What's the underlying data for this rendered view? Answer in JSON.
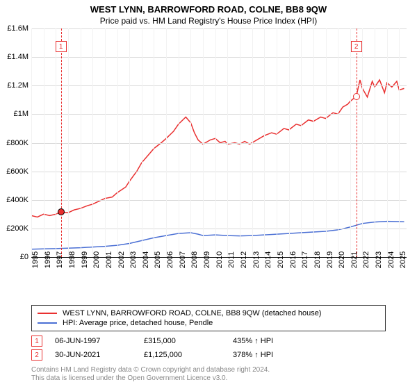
{
  "title": "WEST LYNN, BARROWFORD ROAD, COLNE, BB8 9QW",
  "subtitle": "Price paid vs. HM Land Registry's House Price Index (HPI)",
  "title_fontsize": 13,
  "subtitle_fontsize": 12,
  "axis_label_fontsize": 11,
  "legend_fontsize": 11,
  "footer_fontsize": 10,
  "chart": {
    "type": "line",
    "background_color": "#ffffff",
    "grid_color": "#d9d9d9",
    "grid_light": "#f2f2f2",
    "x_start": 1995,
    "x_end": 2025.6,
    "x_ticks": [
      1995,
      1996,
      1997,
      1998,
      1999,
      2000,
      2001,
      2002,
      2003,
      2004,
      2005,
      2006,
      2007,
      2008,
      2009,
      2010,
      2011,
      2012,
      2013,
      2014,
      2015,
      2016,
      2017,
      2018,
      2019,
      2020,
      2021,
      2022,
      2023,
      2024,
      2025
    ],
    "y_min": 0,
    "y_max": 1600000,
    "y_ticks": [
      {
        "v": 0,
        "label": "£0"
      },
      {
        "v": 200000,
        "label": "£200K"
      },
      {
        "v": 400000,
        "label": "£400K"
      },
      {
        "v": 600000,
        "label": "£600K"
      },
      {
        "v": 800000,
        "label": "£800K"
      },
      {
        "v": 1000000,
        "label": "£1M"
      },
      {
        "v": 1200000,
        "label": "£1.2M"
      },
      {
        "v": 1400000,
        "label": "£1.4M"
      },
      {
        "v": 1600000,
        "label": "£1.6M"
      }
    ],
    "markers": [
      {
        "n": "1",
        "year": 1997.42,
        "value": 315000,
        "color": "#e93030",
        "dot_fill": "#e93030",
        "dot_stroke": "#000"
      },
      {
        "n": "2",
        "year": 2021.5,
        "value": 1125000,
        "color": "#e93030",
        "dot_fill": "#ffffff",
        "dot_stroke": "#e93030"
      }
    ],
    "series": [
      {
        "name": "WEST LYNN, BARROWFORD ROAD, COLNE, BB8 9QW (detached house)",
        "color": "#e93030",
        "width": 1.5,
        "points": [
          [
            1995,
            290000
          ],
          [
            1995.5,
            280000
          ],
          [
            1996,
            300000
          ],
          [
            1996.5,
            290000
          ],
          [
            1997,
            300000
          ],
          [
            1997.42,
            315000
          ],
          [
            1998,
            310000
          ],
          [
            1998.5,
            330000
          ],
          [
            1999,
            340000
          ],
          [
            1999.6,
            360000
          ],
          [
            2000,
            370000
          ],
          [
            2000.5,
            390000
          ],
          [
            2001,
            410000
          ],
          [
            2001.6,
            420000
          ],
          [
            2002,
            450000
          ],
          [
            2002.7,
            490000
          ],
          [
            2003,
            530000
          ],
          [
            2003.6,
            600000
          ],
          [
            2004,
            660000
          ],
          [
            2004.6,
            720000
          ],
          [
            2005,
            760000
          ],
          [
            2005.6,
            800000
          ],
          [
            2006,
            830000
          ],
          [
            2006.6,
            880000
          ],
          [
            2007,
            930000
          ],
          [
            2007.6,
            980000
          ],
          [
            2008,
            940000
          ],
          [
            2008.3,
            870000
          ],
          [
            2008.6,
            820000
          ],
          [
            2009,
            790000
          ],
          [
            2009.6,
            820000
          ],
          [
            2010,
            830000
          ],
          [
            2010.4,
            800000
          ],
          [
            2010.8,
            810000
          ],
          [
            2011,
            790000
          ],
          [
            2011.6,
            800000
          ],
          [
            2012,
            790000
          ],
          [
            2012.4,
            810000
          ],
          [
            2012.8,
            790000
          ],
          [
            2013,
            800000
          ],
          [
            2013.6,
            830000
          ],
          [
            2014,
            850000
          ],
          [
            2014.6,
            870000
          ],
          [
            2015,
            860000
          ],
          [
            2015.6,
            900000
          ],
          [
            2016,
            890000
          ],
          [
            2016.6,
            930000
          ],
          [
            2017,
            920000
          ],
          [
            2017.6,
            960000
          ],
          [
            2018,
            950000
          ],
          [
            2018.6,
            980000
          ],
          [
            2019,
            970000
          ],
          [
            2019.6,
            1010000
          ],
          [
            2020,
            1000000
          ],
          [
            2020.4,
            1050000
          ],
          [
            2020.8,
            1070000
          ],
          [
            2021,
            1090000
          ],
          [
            2021.5,
            1125000
          ],
          [
            2021.8,
            1240000
          ],
          [
            2022,
            1180000
          ],
          [
            2022.4,
            1120000
          ],
          [
            2022.8,
            1230000
          ],
          [
            2023,
            1190000
          ],
          [
            2023.4,
            1240000
          ],
          [
            2023.8,
            1150000
          ],
          [
            2024,
            1220000
          ],
          [
            2024.4,
            1190000
          ],
          [
            2024.8,
            1230000
          ],
          [
            2025,
            1170000
          ],
          [
            2025.4,
            1180000
          ]
        ]
      },
      {
        "name": "HPI: Average price, detached house, Pendle",
        "color": "#4a6fd4",
        "width": 1.5,
        "points": [
          [
            1995,
            55000
          ],
          [
            1996,
            57000
          ],
          [
            1997,
            59000
          ],
          [
            1998,
            62000
          ],
          [
            1999,
            65000
          ],
          [
            2000,
            70000
          ],
          [
            2001,
            75000
          ],
          [
            2002,
            82000
          ],
          [
            2003,
            95000
          ],
          [
            2004,
            115000
          ],
          [
            2005,
            135000
          ],
          [
            2006,
            150000
          ],
          [
            2007,
            165000
          ],
          [
            2008,
            170000
          ],
          [
            2008.6,
            160000
          ],
          [
            2009,
            150000
          ],
          [
            2010,
            155000
          ],
          [
            2011,
            150000
          ],
          [
            2012,
            148000
          ],
          [
            2013,
            150000
          ],
          [
            2014,
            155000
          ],
          [
            2015,
            160000
          ],
          [
            2016,
            165000
          ],
          [
            2017,
            170000
          ],
          [
            2018,
            175000
          ],
          [
            2019,
            180000
          ],
          [
            2020,
            190000
          ],
          [
            2021,
            210000
          ],
          [
            2022,
            235000
          ],
          [
            2023,
            245000
          ],
          [
            2024,
            250000
          ],
          [
            2025,
            248000
          ],
          [
            2025.4,
            247000
          ]
        ]
      }
    ]
  },
  "legend": [
    {
      "color": "#e93030",
      "label": "WEST LYNN, BARROWFORD ROAD, COLNE, BB8 9QW (detached house)"
    },
    {
      "color": "#4a6fd4",
      "label": "HPI: Average price, detached house, Pendle"
    }
  ],
  "refs": [
    {
      "n": "1",
      "color": "#e93030",
      "date": "06-JUN-1997",
      "price": "£315,000",
      "delta": "435% ↑ HPI"
    },
    {
      "n": "2",
      "color": "#e93030",
      "date": "30-JUN-2021",
      "price": "£1,125,000",
      "delta": "378% ↑ HPI"
    }
  ],
  "footer1": "Contains HM Land Registry data © Crown copyright and database right 2024.",
  "footer2": "This data is licensed under the Open Government Licence v3.0."
}
